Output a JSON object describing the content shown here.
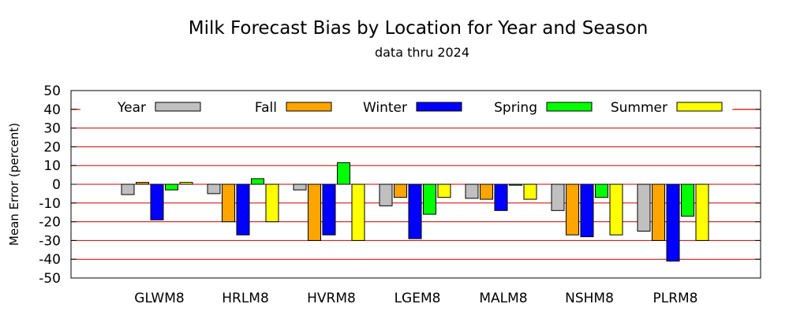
{
  "chart_data": {
    "type": "bar",
    "title": "Milk Forecast Bias by Location for Year and Season",
    "subtitle": "data thru 2024",
    "xlabel": "",
    "ylabel": "Mean Error (percent)",
    "ylim": [
      -50,
      50
    ],
    "yticks": [
      "50",
      "40",
      "30",
      "20",
      "10",
      "0",
      "-10",
      "-20",
      "-30",
      "-40",
      "-50"
    ],
    "grid": "horizontal",
    "grid_color": "#cc0000",
    "legend_position": "top",
    "categories": [
      "GLWM8",
      "HRLM8",
      "HVRM8",
      "LGEM8",
      "MALM8",
      "NSHM8",
      "PLRM8"
    ],
    "series": [
      {
        "name": "Year",
        "color": "#c0c0c0",
        "values": [
          -5.5,
          -5,
          -3,
          -11.5,
          -7.5,
          -14,
          -25
        ]
      },
      {
        "name": "Fall",
        "color": "#ffa500",
        "values": [
          1,
          -20,
          -30,
          -7,
          -8,
          -27,
          -30
        ]
      },
      {
        "name": "Winter",
        "color": "#0000ff",
        "values": [
          -19,
          -27,
          -27,
          -29,
          -14,
          -28,
          -41
        ]
      },
      {
        "name": "Spring",
        "color": "#00ff00",
        "values": [
          -3,
          3,
          11.5,
          -16,
          -0.5,
          -7,
          -17
        ]
      },
      {
        "name": "Summer",
        "color": "#ffff00",
        "values": [
          1,
          -20,
          -30,
          -7,
          -8,
          -27,
          -30
        ]
      }
    ]
  }
}
